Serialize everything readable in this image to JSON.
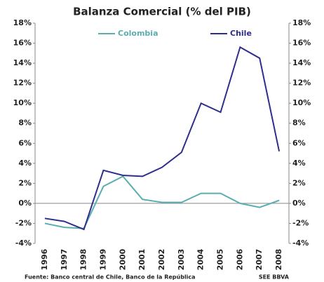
{
  "chart_data": {
    "type": "line",
    "title": "Balanza Comercial (% del PIB)",
    "categories": [
      "1996",
      "1997",
      "1998",
      "1999",
      "2000",
      "2001",
      "2002",
      "2003",
      "2004",
      "2005",
      "2006",
      "2007",
      "2008"
    ],
    "series": [
      {
        "name": "Colombia",
        "color": "#5aaeb0",
        "values": [
          -2.0,
          -2.4,
          -2.5,
          1.7,
          2.7,
          0.4,
          0.1,
          0.1,
          1.0,
          1.0,
          0.0,
          -0.4,
          0.3
        ]
      },
      {
        "name": "Chile",
        "color": "#2e2e8c",
        "values": [
          -1.5,
          -1.8,
          -2.6,
          3.3,
          2.8,
          2.7,
          3.6,
          5.1,
          10.0,
          9.1,
          15.6,
          14.5,
          5.2
        ]
      }
    ],
    "ylim": [
      -4,
      18
    ],
    "yticks": [
      {
        "value": -4,
        "label": "-4%"
      },
      {
        "value": -2,
        "label": "-2%"
      },
      {
        "value": 0,
        "label": "0%"
      },
      {
        "value": 2,
        "label": "2%"
      },
      {
        "value": 4,
        "label": "4%"
      },
      {
        "value": 6,
        "label": "6%"
      },
      {
        "value": 8,
        "label": "8%"
      },
      {
        "value": 10,
        "label": "10%"
      },
      {
        "value": 12,
        "label": "12%"
      },
      {
        "value": 14,
        "label": "14%"
      },
      {
        "value": 16,
        "label": "16%"
      },
      {
        "value": 18,
        "label": "18%"
      }
    ],
    "grid": false,
    "source": "Fuente: Banco central de Chile, Banco de la República",
    "credit": "SEE BBVA"
  }
}
